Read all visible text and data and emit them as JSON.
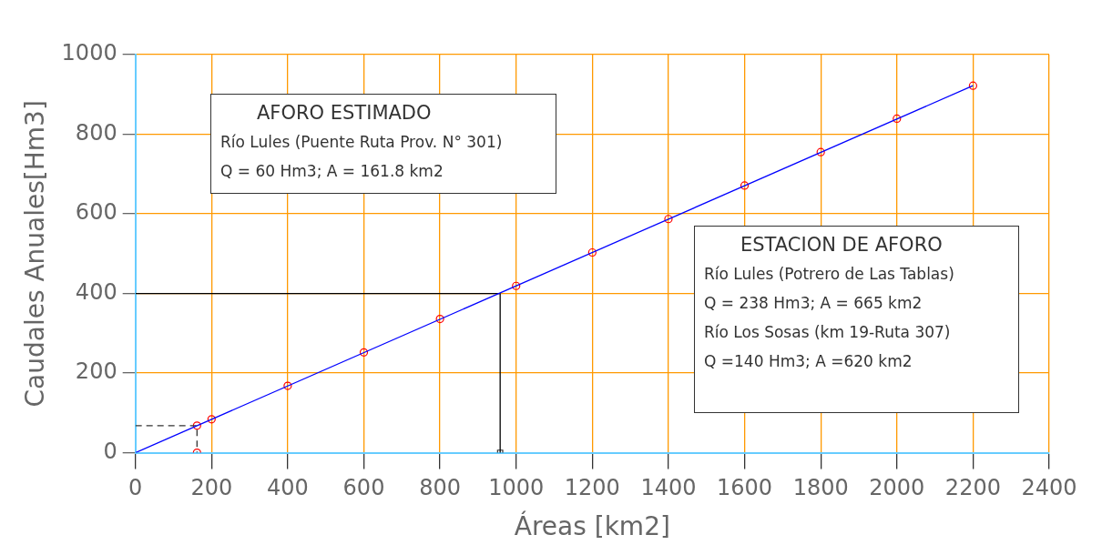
{
  "chart_data": {
    "type": "scatter",
    "xlabel": "Áreas [km2]",
    "ylabel": "Caudales Anuales[Hm3]",
    "xlim": [
      0,
      2400
    ],
    "xticks": [
      0,
      200,
      400,
      600,
      800,
      1000,
      1200,
      1400,
      1600,
      1800,
      2000,
      2200,
      2400
    ],
    "ylim": [
      0,
      1000
    ],
    "yticks": [
      0,
      200,
      400,
      600,
      800,
      1000
    ],
    "grid": true,
    "legend": false,
    "marker": "circle",
    "series": [
      {
        "type": "line",
        "color": "#0000ff",
        "marker": "none",
        "x": [
          0,
          2200
        ],
        "values": [
          0,
          922
        ]
      },
      {
        "type": "line",
        "color": "#000000",
        "marker": "none",
        "x": [
          0,
          958,
          958
        ],
        "values": [
          400,
          400,
          0
        ]
      },
      {
        "type": "line",
        "color": "#333333",
        "marker": "none",
        "line_style": "dashed",
        "x": [
          0,
          161.8,
          161.8
        ],
        "values": [
          68,
          68,
          0
        ]
      },
      {
        "color": "#ff0000",
        "x": [
          161.8,
          200,
          400,
          600,
          800,
          1000,
          1200,
          1400,
          1600,
          1800,
          2000,
          2200
        ],
        "values": [
          68,
          84,
          168,
          252,
          336,
          419,
          503,
          587,
          671,
          755,
          839,
          922
        ]
      },
      {
        "color": "#ff0000",
        "x": [
          161.8
        ],
        "values": [
          0
        ]
      },
      {
        "color": "#333333",
        "marker": "square",
        "x": [
          958
        ],
        "values": [
          0
        ]
      }
    ],
    "annotations": [
      "AFORO ESTIMADO\nRío Lules (Puente Ruta Prov. N° 301)\nQ = 60 Hm3;  A = 161.8 km2",
      "ESTACION DE AFORO\nRío Lules (Potrero de Las Tablas)\nQ = 238 Hm3;  A = 665 km2\nRío Los Sosas (km 19-Ruta 307)\nQ =140 Hm3;  A =620 km2"
    ]
  }
}
